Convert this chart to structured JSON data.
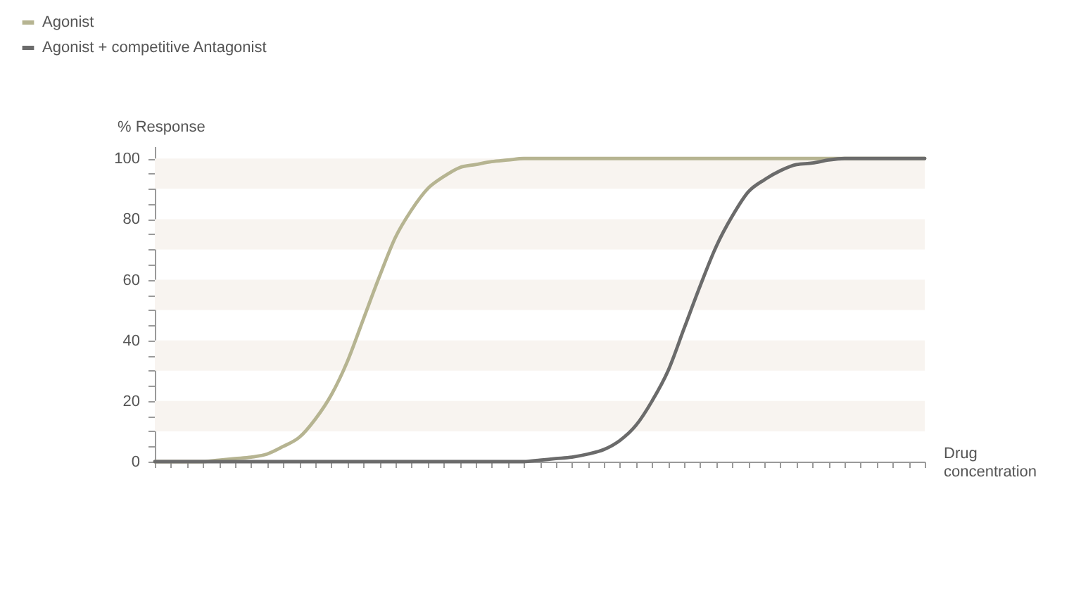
{
  "chart_data": {
    "type": "line",
    "xlabel": "Drug concentration",
    "ylabel": "% Response",
    "categories": [
      null,
      null,
      null,
      null,
      null,
      null,
      null,
      null,
      null,
      null,
      null,
      null,
      null,
      null,
      null,
      null,
      null,
      null,
      null,
      null,
      null,
      null,
      null,
      null,
      null,
      null,
      null,
      null,
      null,
      null,
      null,
      null,
      null,
      null,
      null,
      null,
      null,
      null,
      null,
      null,
      null,
      null,
      null,
      null,
      null,
      null,
      null,
      null,
      null
    ],
    "series": [
      {
        "name": "Agonist",
        "color": "#b6b491",
        "values": [
          0,
          0,
          0,
          0,
          0.5,
          1,
          1.5,
          2.5,
          5,
          8,
          14,
          22,
          33,
          47,
          61,
          74,
          83,
          90,
          94,
          97,
          98,
          99,
          99.5,
          100,
          100,
          100,
          100,
          100,
          100,
          100,
          100,
          100,
          100,
          100,
          100,
          100,
          100,
          100,
          100,
          100,
          100,
          100,
          100,
          100,
          100,
          100,
          100,
          100,
          100
        ]
      },
      {
        "name": "Agonist + competitive Antagonist",
        "color": "#6b6b6b",
        "values": [
          0,
          0,
          0,
          0,
          0,
          0,
          0,
          0,
          0,
          0,
          0,
          0,
          0,
          0,
          0,
          0,
          0,
          0,
          0,
          0,
          0,
          0,
          0,
          0,
          0.5,
          1,
          1.5,
          2.5,
          4,
          7,
          12,
          20,
          30,
          44,
          58,
          71,
          81,
          89,
          93,
          96,
          98,
          98.5,
          99.5,
          100,
          100,
          100,
          100,
          100,
          100
        ]
      }
    ],
    "ylim": [
      0,
      104
    ],
    "yticks": [
      0,
      {
        "value": 5,
        "label": null
      },
      {
        "value": 10,
        "label": null
      },
      {
        "value": 15,
        "label": null
      },
      20,
      {
        "value": 25,
        "label": null
      },
      {
        "value": 30,
        "label": null
      },
      {
        "value": 35,
        "label": null
      },
      40,
      {
        "value": 45,
        "label": null
      },
      {
        "value": 50,
        "label": null
      },
      {
        "value": 55,
        "label": null
      },
      60,
      {
        "value": 65,
        "label": null
      },
      {
        "value": 70,
        "label": null
      },
      {
        "value": 75,
        "label": null
      },
      80,
      {
        "value": 85,
        "label": null
      },
      {
        "value": 90,
        "label": null
      },
      {
        "value": 95,
        "label": null
      },
      100
    ],
    "bands": [
      {
        "axis": "y",
        "from": 10,
        "to": 20,
        "color": "#f8f4f0"
      },
      {
        "axis": "y",
        "from": 30,
        "to": 40,
        "color": "#f8f4f0"
      },
      {
        "axis": "y",
        "from": 50,
        "to": 60,
        "color": "#f8f4f0"
      },
      {
        "axis": "y",
        "from": 70,
        "to": 80,
        "color": "#f8f4f0"
      },
      {
        "axis": "y",
        "from": 90,
        "to": 100,
        "color": "#f8f4f0"
      }
    ],
    "legend": "top left",
    "tick_labels": "y"
  }
}
